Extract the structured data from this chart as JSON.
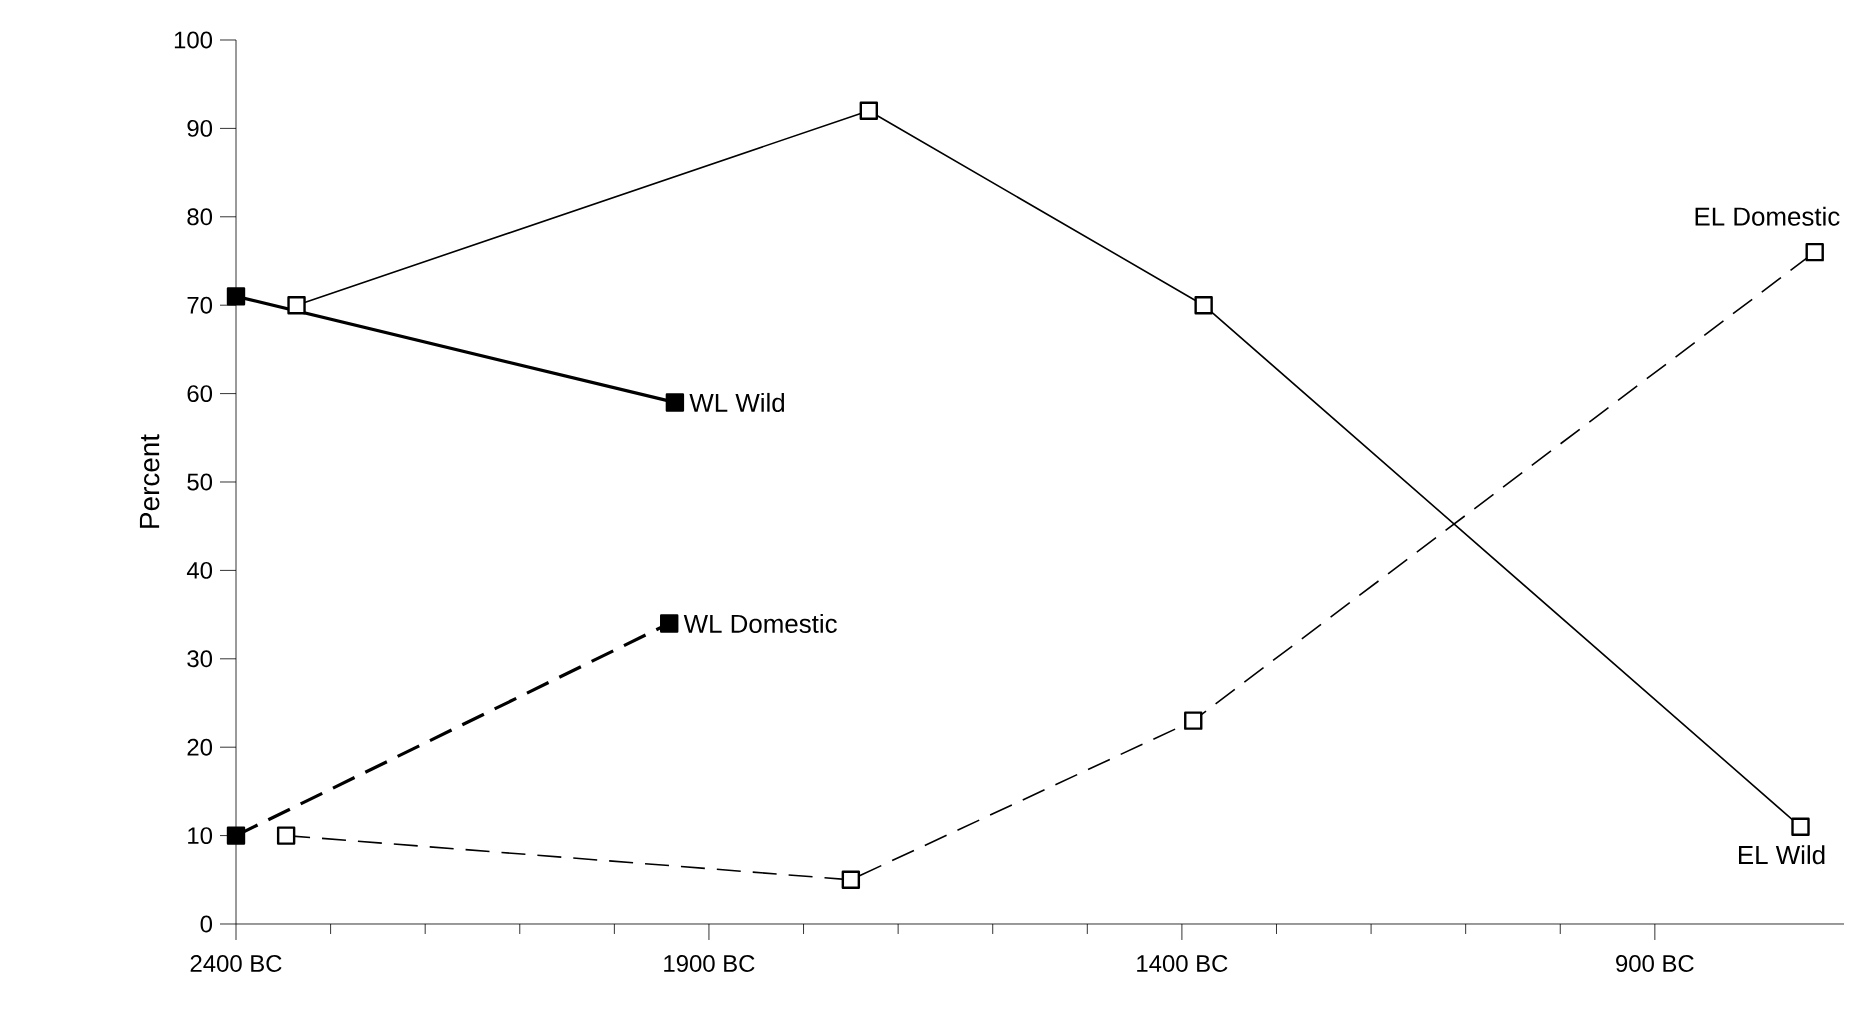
{
  "chart_data": {
    "type": "line",
    "ylabel": "Percent",
    "xlim": [
      -2400,
      -700
    ],
    "ylim": [
      0,
      100
    ],
    "xticks": [
      {
        "value": -2400,
        "label": "2400 BC"
      },
      {
        "value": -1900,
        "label": "1900 BC"
      },
      {
        "value": -1400,
        "label": "1400 BC"
      },
      {
        "value": -900,
        "label": "900 BC"
      }
    ],
    "yticks": [
      0,
      10,
      20,
      30,
      40,
      50,
      60,
      70,
      80,
      90,
      100
    ],
    "grid": false,
    "legend": false,
    "marker": "square",
    "series": [
      {
        "name": "WL Wild",
        "color": "#000000",
        "line_style": "solid",
        "x": [
          -2400,
          -1936
        ],
        "values": [
          71,
          59
        ]
      },
      {
        "name": "WL Domestic",
        "color": "#000000",
        "line_style": "dashed",
        "x": [
          -2400,
          -1942
        ],
        "values": [
          10,
          34
        ]
      },
      {
        "name": "EL Wild",
        "color": "#000000",
        "line_style": "solid",
        "x": [
          -2336,
          -1731,
          -1377,
          -746
        ],
        "values": [
          70,
          92,
          70,
          11
        ]
      },
      {
        "name": "EL Domestic",
        "color": "#000000",
        "line_style": "dashed",
        "x": [
          -2347,
          -1750,
          -1388,
          -731
        ],
        "values": [
          10,
          5,
          23,
          76
        ]
      }
    ]
  }
}
